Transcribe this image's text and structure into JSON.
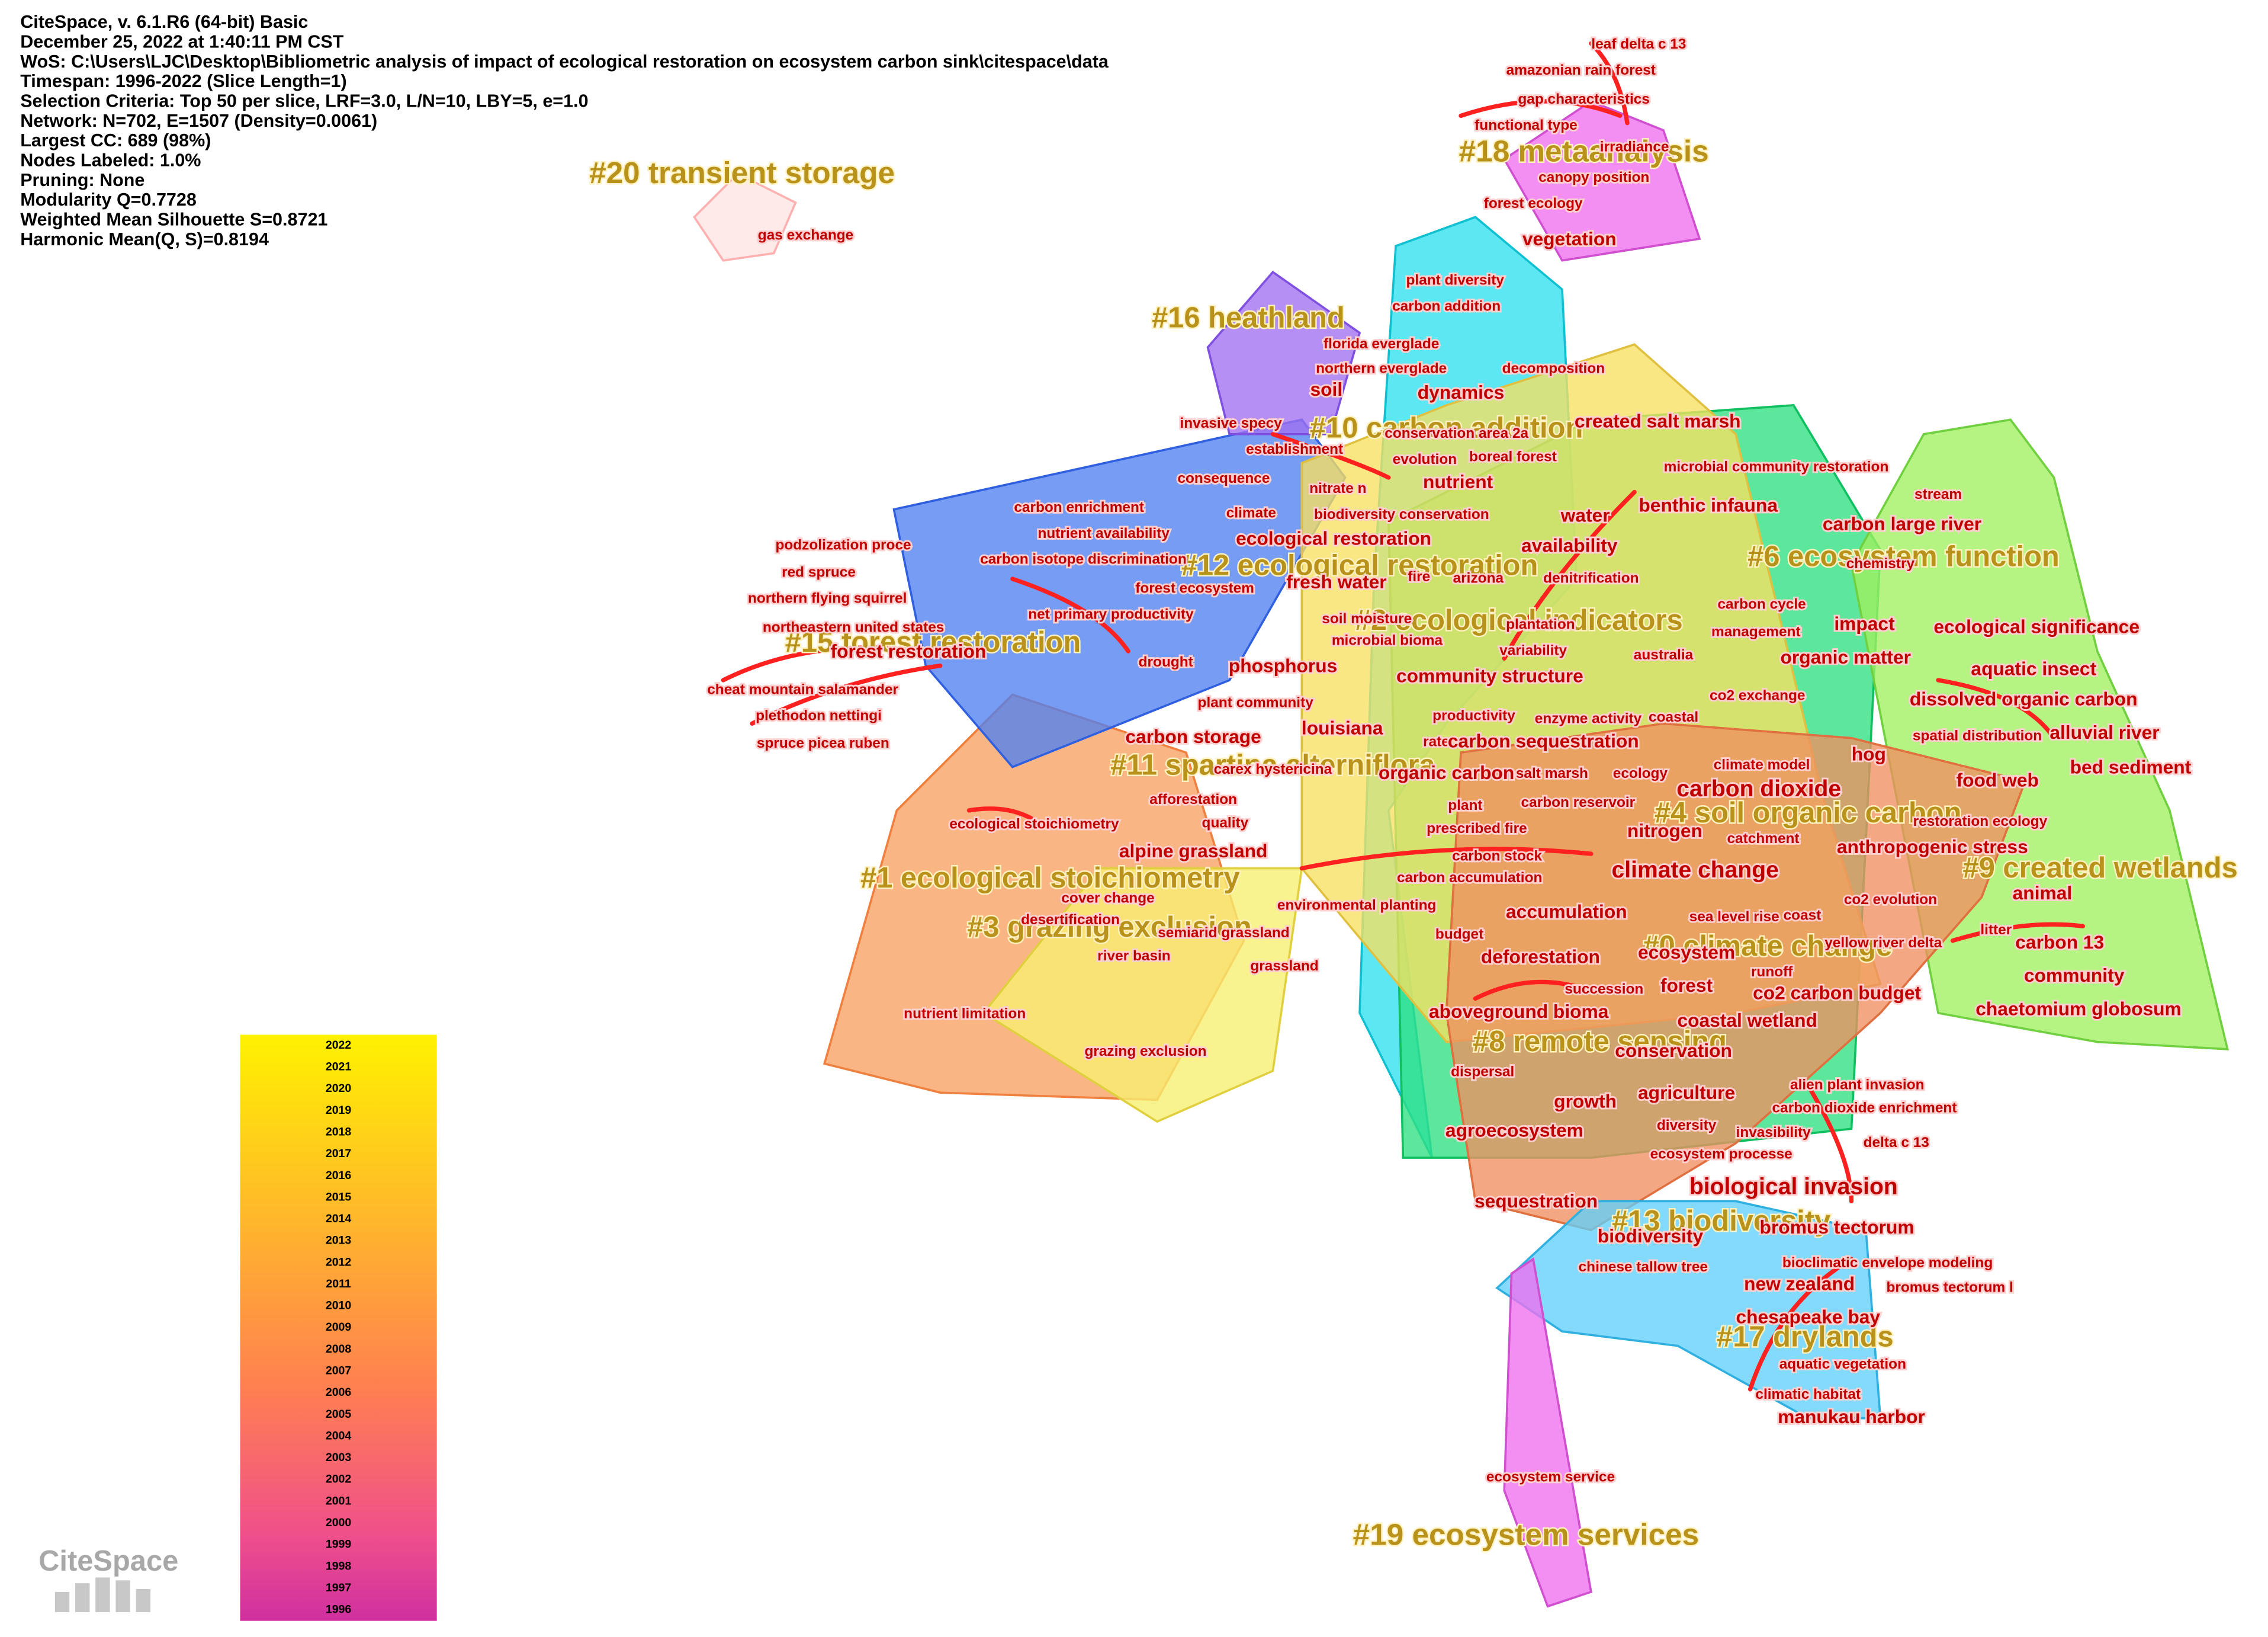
{
  "header": [
    "CiteSpace, v. 6.1.R6 (64-bit) Basic",
    "December 25, 2022 at 1:40:11 PM CST",
    "WoS: C:\\Users\\LJC\\Desktop\\Bibliometric analysis of impact of ecological restoration on ecosystem carbon sink\\citespace\\data",
    "Timespan: 1996-2022 (Slice Length=1)",
    "Selection Criteria: Top 50 per slice, LRF=3.0, L/N=10, LBY=5, e=1.0",
    "Network: N=702, E=1507 (Density=0.0061)",
    "Largest CC: 689 (98%)",
    "Nodes Labeled: 1.0%",
    "Pruning: None",
    "Modularity Q=0.7728",
    "Weighted Mean Silhouette S=0.8721",
    "Harmonic Mean(Q, S)=0.8194"
  ],
  "clusters": [
    "#20 transient storage",
    "#18 metaanalysis",
    "#16 heathland",
    "#10 carbon addition",
    "#6 ecosystem function",
    "#2 ecological indicators",
    "#12 ecological restoration",
    "#15 forest restoration",
    "#11 spartina alterniflora",
    "#4 soil organic carbon",
    "#1 ecological stoichiometry",
    "#9 created wetlands",
    "#3 grazing exclusion",
    "#0 climate change",
    "#8 remote sensing",
    "#13 biodiversity",
    "#17 drylands",
    "#19 ecosystem services"
  ],
  "keywords": [
    "leaf delta c 13",
    "amazonian rain forest",
    "gap characteristics",
    "functional type",
    "irradiance",
    "canopy position",
    "forest ecology",
    "vegetation",
    "gas exchange",
    "plant diversity",
    "carbon addition",
    "florida everglade",
    "northern everglade",
    "decomposition",
    "soil",
    "dynamics",
    "invasive specy",
    "created salt marsh",
    "conservation area 2a",
    "establishment",
    "evolution",
    "boreal forest",
    "microbial community restoration",
    "consequence",
    "nutrient",
    "nitrate n",
    "benthic infauna",
    "carbon enrichment",
    "climate",
    "biodiversity conservation",
    "water",
    "carbon large river",
    "stream",
    "nutrient availability",
    "ecological restoration",
    "availability",
    "podzolization proce",
    "carbon isotope discrimination",
    "chemistry",
    "red spruce",
    "arizona",
    "denitrification",
    "fresh water",
    "fire",
    "forest ecosystem",
    "northern flying squirrel",
    "carbon cycle",
    "net primary productivity",
    "soil moisture",
    "plantation",
    "impact",
    "ecological significance",
    "northeastern united states",
    "management",
    "microbial bioma",
    "variability",
    "australia",
    "forest restoration",
    "organic matter",
    "phosphorus",
    "drought",
    "aquatic insect",
    "community structure",
    "co2 exchange",
    "cheat mountain salamander",
    "plant community",
    "dissolved organic carbon",
    "louisiana",
    "productivity",
    "enzyme activity",
    "coastal",
    "plethodon nettingi",
    "spatial distribution",
    "alluvial river",
    "rate",
    "carbon sequestration",
    "carbon storage",
    "spruce picea ruben",
    "hog",
    "climate model",
    "bed sediment",
    "carex hystericina",
    "organic carbon",
    "salt marsh",
    "ecology",
    "food web",
    "carbon dioxide",
    "afforestation",
    "plant",
    "carbon reservoir",
    "quality",
    "ecological stoichiometry",
    "prescribed fire",
    "nitrogen",
    "restoration ecology",
    "catchment",
    "anthropogenic stress",
    "carbon stock",
    "alpine grassland",
    "climate change",
    "carbon accumulation",
    "animal",
    "cover change",
    "co2 evolution",
    "environmental planting",
    "accumulation",
    "coast",
    "sea level rise",
    "desertification",
    "semiarid grassland",
    "litter",
    "budget",
    "carbon 13",
    "yellow river delta",
    "river basin",
    "ecosystem",
    "deforestation",
    "grassland",
    "runoff",
    "community",
    "succession",
    "forest",
    "co2 carbon budget",
    "aboveground bioma",
    "chaetomium globosum",
    "nutrient limitation",
    "coastal wetland",
    "grazing exclusion",
    "conservation",
    "dispersal",
    "alien plant invasion",
    "agriculture",
    "growth",
    "carbon dioxide enrichment",
    "agroecosystem",
    "diversity",
    "invasibility",
    "delta c 13",
    "ecosystem processe",
    "biological invasion",
    "sequestration",
    "bromus tectorum",
    "biodiversity",
    "chinese tallow tree",
    "bioclimatic envelope modeling",
    "new zealand",
    "bromus tectorum l",
    "chesapeake bay",
    "aquatic vegetation",
    "climatic habitat",
    "manukau harbor",
    "ecosystem service"
  ],
  "legend_years": [
    2022,
    2021,
    2020,
    2019,
    2018,
    2017,
    2016,
    2015,
    2014,
    2013,
    2012,
    2011,
    2010,
    2009,
    2008,
    2007,
    2006,
    2005,
    2004,
    2003,
    2002,
    2001,
    2000,
    1999,
    1998,
    1997,
    1996
  ],
  "logo": "CiteSpace"
}
